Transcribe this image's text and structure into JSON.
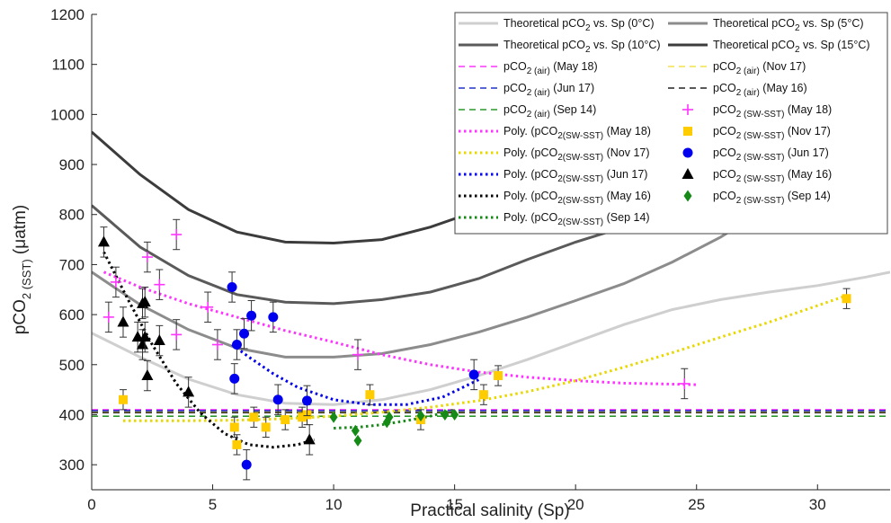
{
  "chart_data": {
    "type": "scatter",
    "xlabel": "Practical salinity (Sp)",
    "ylabel": "pCO₂ (SST) (μatm)",
    "ylabel_main": "pCO",
    "ylabel_sub2": "2",
    "ylabel_sub": "(SST)",
    "ylabel_unit": "(μatm)",
    "xlim": [
      0,
      33
    ],
    "ylim": [
      250,
      1200
    ],
    "xticks": [
      0,
      5,
      10,
      15,
      20,
      25,
      30
    ],
    "yticks": [
      300,
      400,
      500,
      600,
      700,
      800,
      900,
      1000,
      1100,
      1200
    ],
    "grid": false,
    "legend_position": "top-right",
    "theoretical_curves": [
      {
        "name": "Theoretical pCO2 vs. Sp (0°C)",
        "color": "#cfcfcf",
        "x": [
          0,
          2,
          4,
          6,
          8,
          10,
          12,
          14,
          16,
          18,
          20,
          22,
          24,
          26,
          28,
          30,
          32,
          33
        ],
        "y": [
          563,
          515,
          471,
          440,
          423,
          420,
          430,
          450,
          478,
          510,
          545,
          580,
          610,
          630,
          645,
          658,
          675,
          685
        ]
      },
      {
        "name": "Theoretical pCO2 vs. Sp (5°C)",
        "color": "#8c8c8c",
        "x": [
          0,
          2,
          4,
          6,
          8,
          10,
          12,
          14,
          16,
          18,
          20,
          22,
          24,
          26,
          27
        ],
        "y": [
          685,
          620,
          570,
          533,
          515,
          515,
          522,
          540,
          565,
          595,
          628,
          662,
          705,
          755,
          785
        ]
      },
      {
        "name": "Theoretical pCO2 vs. Sp (10°C)",
        "color": "#5a5a5a",
        "x": [
          0,
          2,
          4,
          6,
          8,
          10,
          12,
          14,
          16,
          18,
          20,
          22,
          23
        ],
        "y": [
          818,
          735,
          678,
          640,
          625,
          622,
          630,
          645,
          672,
          710,
          745,
          775,
          785
        ]
      },
      {
        "name": "Theoretical pCO2 vs. Sp (15°C)",
        "color": "#3c3c3c",
        "x": [
          0,
          2,
          4,
          6,
          8,
          10,
          12,
          14,
          15.5
        ],
        "y": [
          965,
          880,
          810,
          765,
          745,
          743,
          750,
          775,
          800
        ]
      }
    ],
    "air_lines": [
      {
        "name": "pCO2 (air) (May 18)",
        "color": "#ff33ff",
        "y": 410
      },
      {
        "name": "pCO2 (air) (Nov 17)",
        "color": "#f2e24a",
        "y": 406
      },
      {
        "name": "pCO2 (air) (Jun 17)",
        "color": "#2233cc",
        "y": 408
      },
      {
        "name": "pCO2 (air) (May 16)",
        "color": "#222222",
        "y": 404
      },
      {
        "name": "pCO2 (air) (Sep 14)",
        "color": "#2a9a2a",
        "y": 397
      }
    ],
    "poly_fits": [
      {
        "name": "Poly. (pCO2(SW-SST) (May 18)",
        "color": "#ff33ff",
        "x": [
          0.5,
          2,
          4,
          6,
          8,
          10,
          12,
          14,
          16,
          18,
          20,
          22,
          24,
          25
        ],
        "y": [
          685,
          655,
          622,
          595,
          568,
          545,
          520,
          500,
          485,
          475,
          468,
          463,
          461,
          460
        ]
      },
      {
        "name": "Poly. (pCO2(SW-SST) (Nov 17)",
        "color": "#e8d800",
        "x": [
          1.3,
          4,
          6,
          8,
          10,
          12,
          14,
          16,
          18,
          20,
          22,
          24,
          26,
          28,
          30,
          31.2
        ],
        "y": [
          388,
          388,
          389,
          392,
          397,
          405,
          415,
          428,
          446,
          468,
          495,
          524,
          555,
          585,
          618,
          638
        ]
      },
      {
        "name": "Poly. (pCO2(SW-SST) (Jun 17)",
        "color": "#0000ee",
        "x": [
          5.8,
          6.5,
          7.5,
          8.5,
          10,
          11.5,
          13,
          14.5,
          16
        ],
        "y": [
          540,
          515,
          482,
          455,
          430,
          420,
          420,
          435,
          470
        ]
      },
      {
        "name": "Poly. (pCO2(SW-SST) (May 16)",
        "color": "#000000",
        "x": [
          0.5,
          1.5,
          2.5,
          3.5,
          4.5,
          5.5,
          6.5,
          7.5,
          8.5,
          9.2
        ],
        "y": [
          725,
          630,
          540,
          462,
          403,
          362,
          340,
          335,
          340,
          350
        ]
      },
      {
        "name": "Poly. (pCO2(SW-SST) (Sep 14)",
        "color": "#168a16",
        "x": [
          10,
          11,
          12,
          13,
          14,
          15
        ],
        "y": [
          373,
          375,
          380,
          388,
          397,
          410
        ]
      }
    ],
    "series": [
      {
        "name": "pCO2 (SW-SST) (May 18)",
        "marker": "plus",
        "color": "#ff33ff",
        "x": [
          0.7,
          1,
          2.3,
          2.8,
          3.5,
          3.5,
          4.8,
          5.2,
          11,
          24.5
        ],
        "y": [
          595,
          665,
          715,
          660,
          760,
          560,
          615,
          540,
          520,
          462
        ],
        "err": [
          30,
          30,
          30,
          30,
          30,
          30,
          30,
          30,
          30,
          30
        ]
      },
      {
        "name": "pCO2 (SW-SST) (Nov 17)",
        "marker": "square",
        "color": "#ffcc00",
        "x": [
          1.3,
          5.9,
          6,
          6.7,
          7.2,
          8,
          8.7,
          8.9,
          11.5,
          13.6,
          16.2,
          16.8,
          31.2
        ],
        "y": [
          430,
          375,
          340,
          395,
          375,
          390,
          395,
          400,
          440,
          390,
          440,
          478,
          632
        ],
        "err": [
          20,
          20,
          20,
          20,
          20,
          20,
          20,
          20,
          20,
          20,
          20,
          20,
          20
        ]
      },
      {
        "name": "pCO2 (SW-SST) (Jun 17)",
        "marker": "circle",
        "color": "#0000ee",
        "x": [
          5.8,
          5.9,
          6,
          6.3,
          6.4,
          6.6,
          7.5,
          7.7,
          8.9,
          15.8
        ],
        "y": [
          655,
          472,
          540,
          562,
          300,
          598,
          595,
          430,
          428,
          480
        ],
        "err": [
          30,
          30,
          30,
          30,
          30,
          30,
          30,
          30,
          30,
          30
        ]
      },
      {
        "name": "pCO2 (SW-SST) (May 16)",
        "marker": "triangle",
        "color": "#000000",
        "x": [
          0.5,
          1.3,
          1.9,
          2.1,
          2.1,
          2.2,
          2.2,
          2.3,
          2.8,
          4,
          9
        ],
        "y": [
          745,
          585,
          555,
          622,
          540,
          555,
          625,
          478,
          548,
          445,
          350
        ],
        "err": [
          30,
          30,
          30,
          30,
          30,
          30,
          30,
          30,
          30,
          30,
          30
        ]
      },
      {
        "name": "pCO2 (SW-SST) (Sep 14)",
        "marker": "diamond",
        "color": "#168a16",
        "x": [
          10,
          10.9,
          11,
          12.2,
          12.3,
          13.6,
          14.6,
          15
        ],
        "y": [
          395,
          368,
          348,
          385,
          395,
          398,
          400,
          400
        ],
        "err": [
          0,
          0,
          0,
          0,
          0,
          0,
          0,
          0
        ]
      }
    ]
  },
  "legend": {
    "items": [
      {
        "kind": "line",
        "color": "#cfcfcf",
        "dash": "",
        "pre": "Theoretical pCO",
        "sub": "2",
        "post": " vs. Sp (0°C)"
      },
      {
        "kind": "line",
        "color": "#8c8c8c",
        "dash": "",
        "pre": "Theoretical pCO",
        "sub": "2",
        "post": " vs. Sp (5°C)"
      },
      {
        "kind": "line",
        "color": "#5a5a5a",
        "dash": "",
        "pre": "Theoretical pCO",
        "sub": "2",
        "post": " vs. Sp (10°C)"
      },
      {
        "kind": "line",
        "color": "#3c3c3c",
        "dash": "",
        "pre": "Theoretical pCO",
        "sub": "2",
        "post": " vs. Sp (15°C)"
      },
      {
        "kind": "line",
        "color": "#ff33ff",
        "dash": "7,5",
        "pre": "pCO",
        "sub": "2 (air)",
        "post": " (May 18)"
      },
      {
        "kind": "line",
        "color": "#f2e24a",
        "dash": "7,5",
        "pre": "pCO",
        "sub": "2 (air)",
        "post": " (Nov 17)"
      },
      {
        "kind": "line",
        "color": "#2233cc",
        "dash": "7,5",
        "pre": "pCO",
        "sub": "2 (air)",
        "post": " (Jun 17)"
      },
      {
        "kind": "line",
        "color": "#222222",
        "dash": "7,5",
        "pre": "pCO",
        "sub": "2 (air)",
        "post": " (May 16)"
      },
      {
        "kind": "line",
        "color": "#2a9a2a",
        "dash": "7,5",
        "pre": "pCO",
        "sub": "2 (air)",
        "post": " (Sep 14)"
      },
      {
        "kind": "plus",
        "color": "#ff33ff",
        "pre": "pCO",
        "sub": "2 (SW-SST)",
        "post": " (May 18)"
      },
      {
        "kind": "dots",
        "color": "#ff33ff",
        "pre": "Poly. (pCO",
        "sub": "2(SW-SST)",
        "post": " (May 18)"
      },
      {
        "kind": "square",
        "color": "#ffcc00",
        "pre": "pCO",
        "sub": "2 (SW-SST)",
        "post": " (Nov 17)"
      },
      {
        "kind": "dots",
        "color": "#e8d800",
        "pre": "Poly. (pCO",
        "sub": "2(SW-SST)",
        "post": " (Nov 17)"
      },
      {
        "kind": "circle",
        "color": "#0000ee",
        "pre": "pCO",
        "sub": "2 (SW-SST)",
        "post": " (Jun 17)"
      },
      {
        "kind": "dots",
        "color": "#0000ee",
        "pre": "Poly. (pCO",
        "sub": "2(SW-SST)",
        "post": " (Jun 17)"
      },
      {
        "kind": "triangle",
        "color": "#000000",
        "pre": "pCO",
        "sub": "2 (SW-SST)",
        "post": " (May 16)"
      },
      {
        "kind": "dots",
        "color": "#000000",
        "pre": "Poly. (pCO",
        "sub": "2(SW-SST)",
        "post": " (May 16)"
      },
      {
        "kind": "diamond",
        "color": "#168a16",
        "pre": "pCO",
        "sub": "2 (SW-SST)",
        "post": " (Sep 14)"
      },
      {
        "kind": "dots",
        "color": "#168a16",
        "pre": "Poly. (pCO",
        "sub": "2(SW-SST)",
        "post": " (Sep 14)"
      }
    ]
  }
}
